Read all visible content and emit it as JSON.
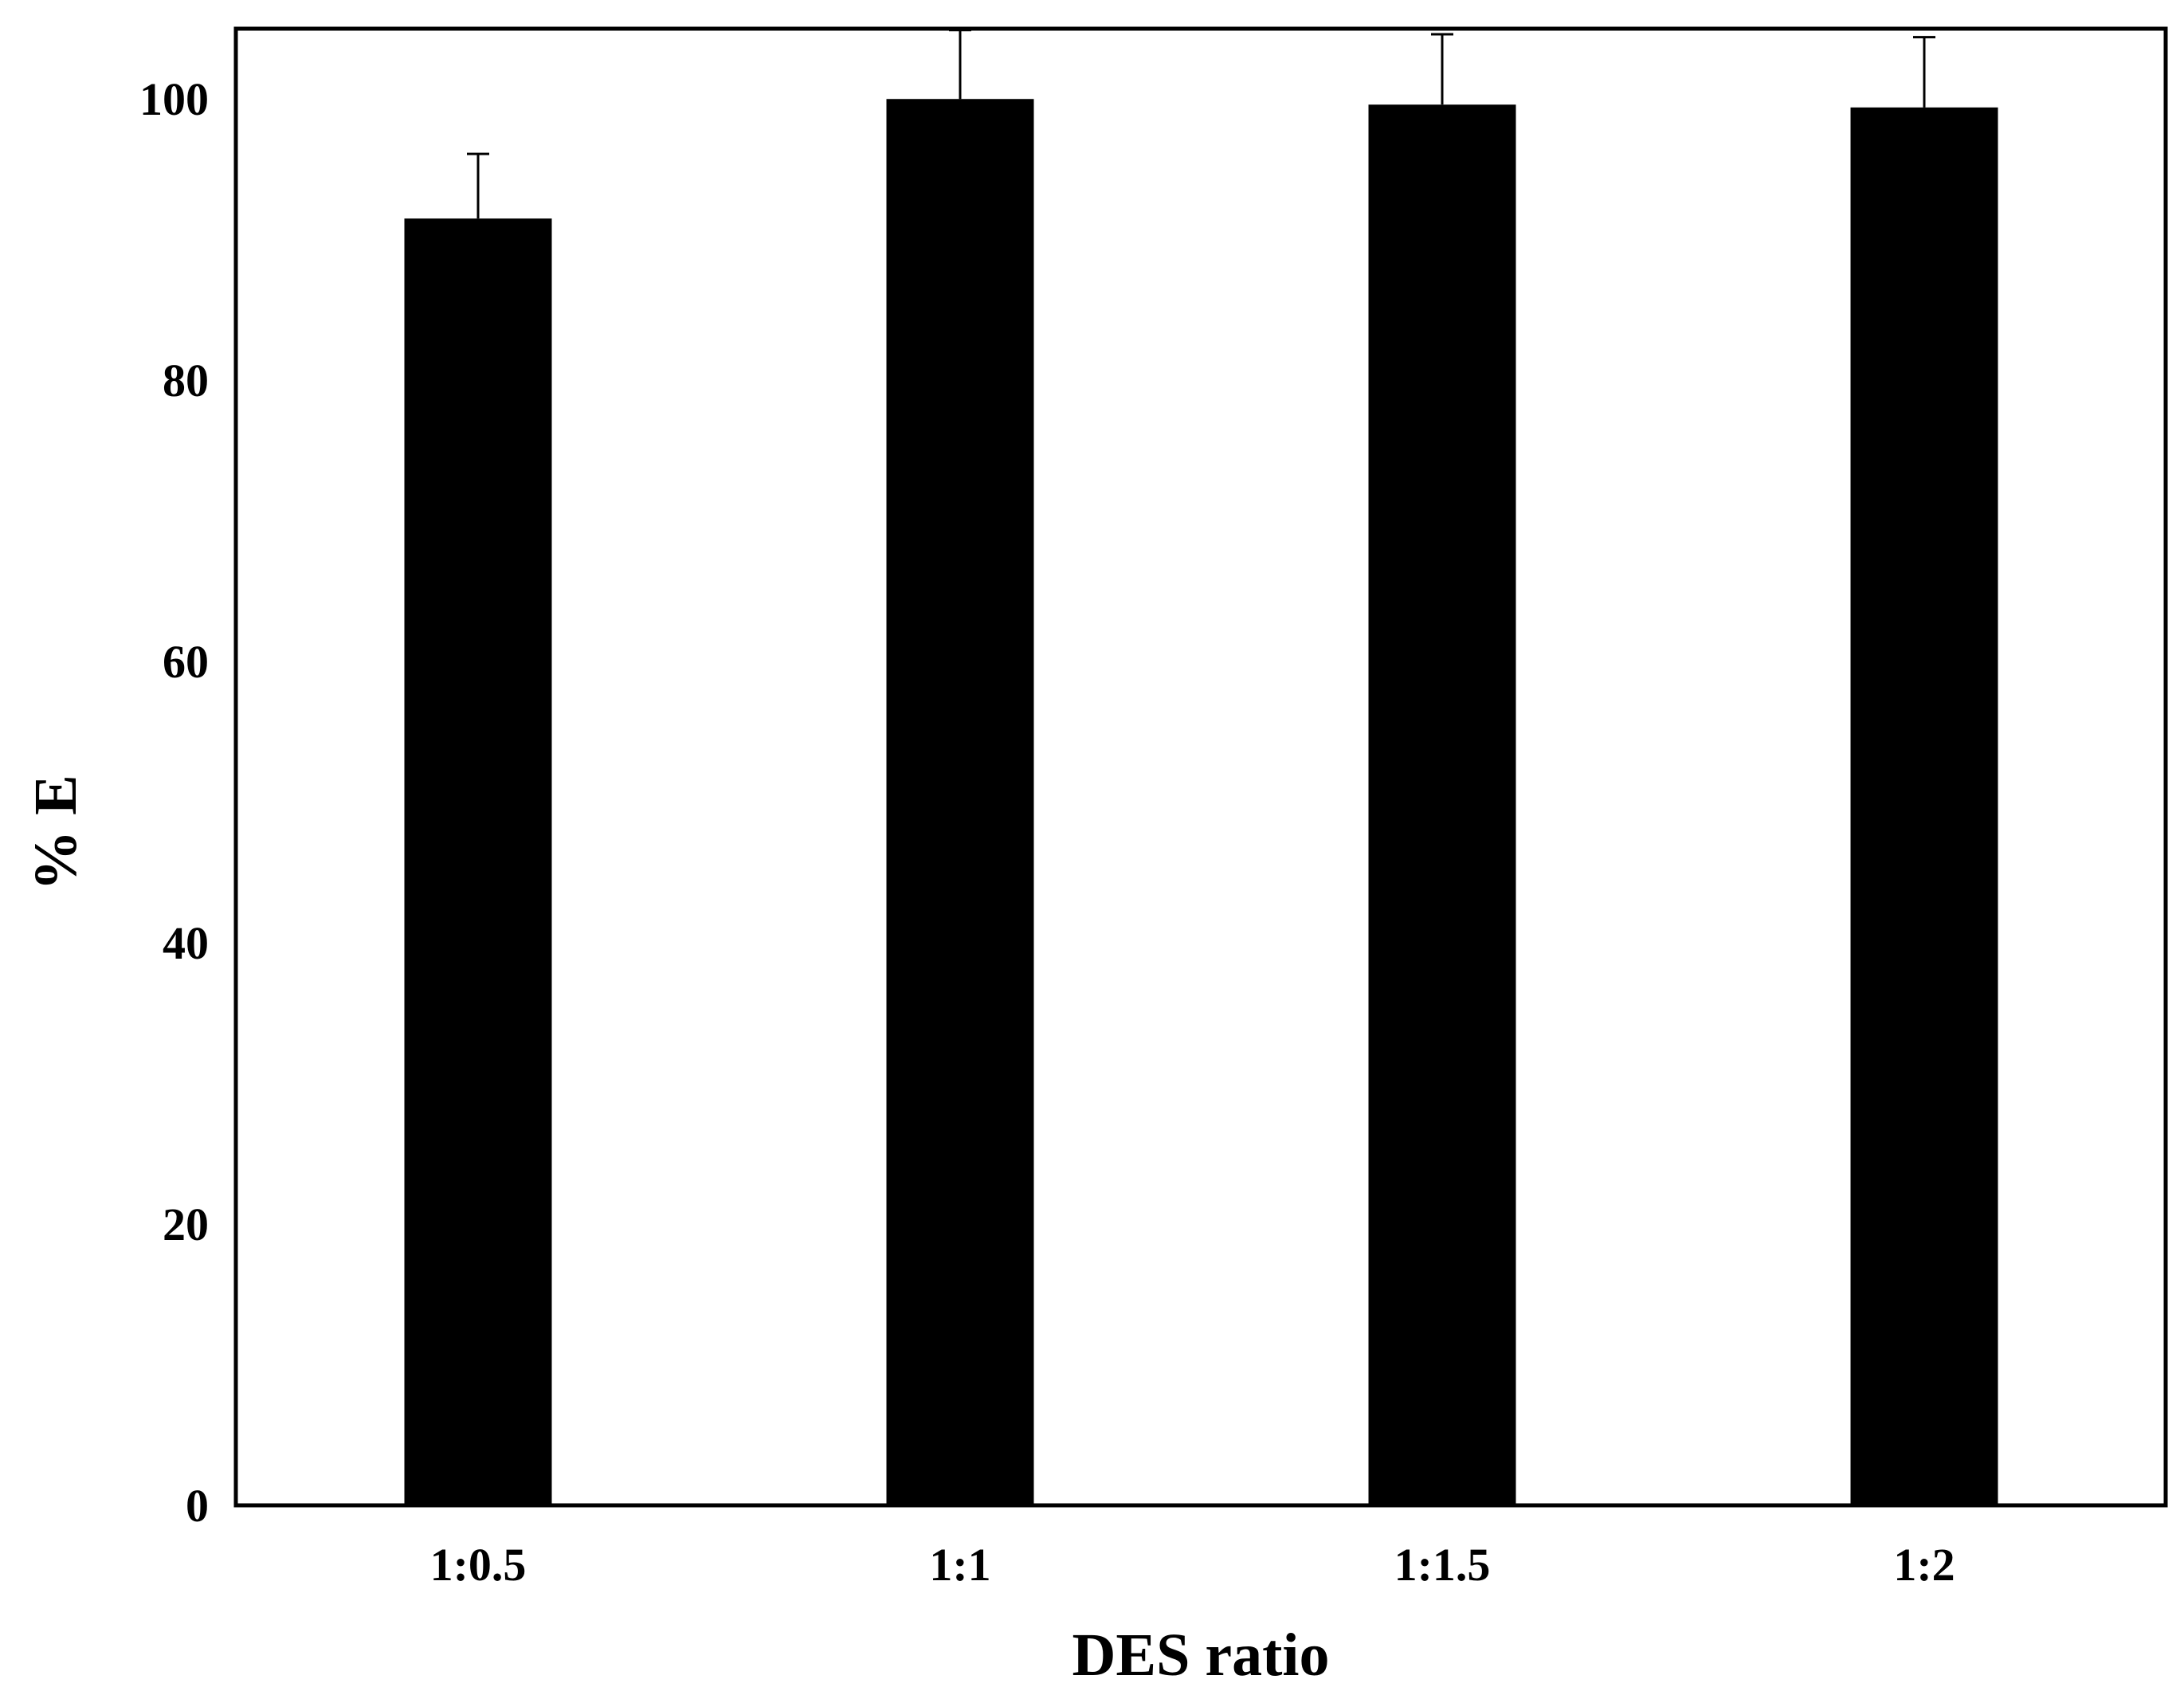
{
  "chart_data": {
    "type": "bar",
    "title": "",
    "xlabel": "DES ratio",
    "ylabel": "% E",
    "categories": [
      "1:0.5",
      "1:1",
      "1:1.5",
      "1:2"
    ],
    "values": [
      91.5,
      100.0,
      99.6,
      99.4
    ],
    "errors": [
      4.6,
      4.9,
      5.0,
      5.0
    ],
    "ylim": [
      0,
      105
    ],
    "yticks": [
      0,
      20,
      40,
      60,
      80,
      100
    ],
    "grid": false,
    "legend": "none",
    "colors": {
      "bar": "#000000",
      "axis": "#000000",
      "background": "#ffffff"
    }
  }
}
